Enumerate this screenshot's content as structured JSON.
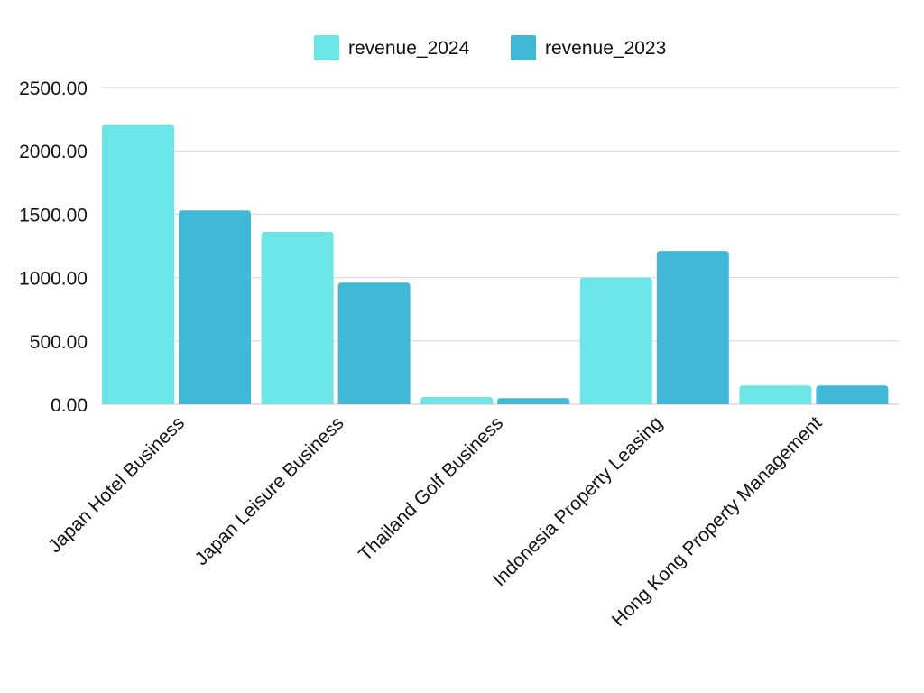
{
  "chart_data": {
    "type": "bar",
    "title": "",
    "xlabel": "",
    "ylabel": "",
    "categories": [
      "Japan Hotel Business",
      "Japan Leisure Business",
      "Thailand Golf Business",
      "Indonesia Property Leasing",
      "Hong Kong Property Management"
    ],
    "series": [
      {
        "name": "revenue_2024",
        "color": "#6ce5e8",
        "values": [
          2210,
          1360,
          58,
          1000,
          148
        ]
      },
      {
        "name": "revenue_2023",
        "color": "#41b8d5",
        "values": [
          1530,
          960,
          48,
          1210,
          148
        ]
      }
    ],
    "ylim": [
      0,
      2500
    ],
    "yticks": [
      "0.00",
      "500.00",
      "1000.00",
      "1500.00",
      "2000.00",
      "2500.00"
    ],
    "grid": true,
    "legend_position": "top-center"
  }
}
